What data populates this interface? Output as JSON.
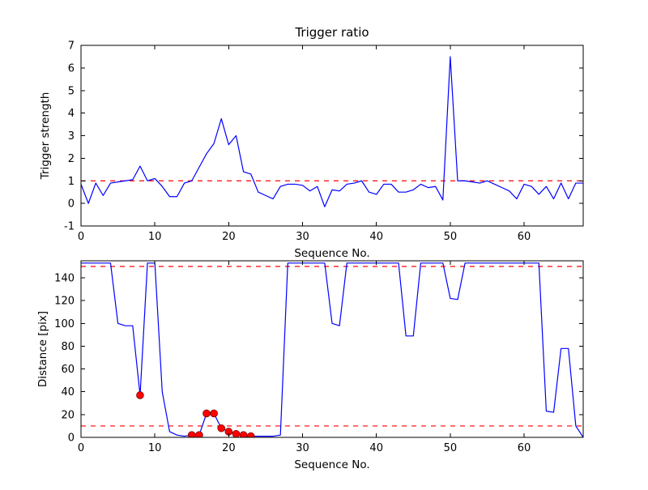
{
  "figure": {
    "background": "#ffffff",
    "line_color": "#0000ff",
    "threshold_color": "#ff0000",
    "marker_color": "#ff0000",
    "spine_color": "#000000"
  },
  "chart_data": [
    {
      "type": "line",
      "name": "trigger-ratio-chart",
      "title": "Trigger ratio",
      "xlabel": "Sequence No.",
      "ylabel": "Trigger strength",
      "xlim": [
        0,
        68
      ],
      "ylim": [
        -1,
        7
      ],
      "xticks": [
        0,
        10,
        20,
        30,
        40,
        50,
        60
      ],
      "yticks": [
        -1,
        0,
        1,
        2,
        3,
        4,
        5,
        6,
        7
      ],
      "grid": false,
      "legend": null,
      "threshold_lines": [
        {
          "y": 1,
          "style": "dashed",
          "color": "#ff0000"
        }
      ],
      "series": [
        {
          "name": "trigger-strength",
          "color": "#0000ff",
          "x": [
            0,
            1,
            2,
            3,
            4,
            5,
            6,
            7,
            8,
            9,
            10,
            11,
            12,
            13,
            14,
            15,
            16,
            17,
            18,
            19,
            20,
            21,
            22,
            23,
            24,
            25,
            26,
            27,
            28,
            29,
            30,
            31,
            32,
            33,
            34,
            35,
            36,
            37,
            38,
            39,
            40,
            41,
            42,
            43,
            44,
            45,
            46,
            47,
            48,
            49,
            50,
            51,
            52,
            53,
            54,
            55,
            56,
            57,
            58,
            59,
            60,
            61,
            62,
            63,
            64,
            65,
            66,
            67,
            68
          ],
          "y": [
            0.85,
            0.0,
            0.9,
            0.35,
            0.9,
            0.95,
            1.0,
            1.05,
            1.65,
            1.0,
            1.1,
            0.75,
            0.3,
            0.3,
            0.9,
            1.0,
            1.6,
            2.2,
            2.65,
            3.75,
            2.6,
            3.0,
            1.4,
            1.3,
            0.5,
            0.35,
            0.2,
            0.75,
            0.85,
            0.85,
            0.8,
            0.55,
            0.75,
            -0.15,
            0.6,
            0.55,
            0.85,
            0.9,
            1.0,
            0.5,
            0.4,
            0.85,
            0.85,
            0.5,
            0.5,
            0.6,
            0.85,
            0.7,
            0.75,
            0.15,
            6.5,
            1.0,
            1.0,
            0.95,
            0.9,
            1.0,
            0.85,
            0.7,
            0.55,
            0.2,
            0.85,
            0.75,
            0.4,
            0.75,
            0.2,
            0.9,
            0.2,
            0.9,
            0.9
          ]
        }
      ]
    },
    {
      "type": "line",
      "name": "distance-chart",
      "title": "",
      "xlabel": "Sequence No.",
      "ylabel": "Distance [pix]",
      "xlim": [
        0,
        68
      ],
      "ylim": [
        0,
        155
      ],
      "xticks": [
        0,
        10,
        20,
        30,
        40,
        50,
        60
      ],
      "yticks": [
        0,
        20,
        40,
        60,
        80,
        100,
        120,
        140
      ],
      "grid": false,
      "legend": null,
      "threshold_lines": [
        {
          "y": 150,
          "style": "dashed",
          "color": "#ff0000"
        },
        {
          "y": 10,
          "style": "dashed",
          "color": "#ff0000"
        }
      ],
      "series": [
        {
          "name": "distance",
          "color": "#0000ff",
          "x": [
            0,
            1,
            2,
            3,
            4,
            5,
            6,
            7,
            8,
            9,
            10,
            11,
            12,
            13,
            14,
            15,
            16,
            17,
            18,
            19,
            20,
            21,
            22,
            23,
            24,
            25,
            26,
            27,
            28,
            29,
            30,
            31,
            32,
            33,
            34,
            35,
            36,
            37,
            38,
            39,
            40,
            41,
            42,
            43,
            44,
            45,
            46,
            47,
            48,
            49,
            50,
            51,
            52,
            53,
            54,
            55,
            56,
            57,
            58,
            59,
            60,
            61,
            62,
            63,
            64,
            65,
            66,
            67,
            68
          ],
          "y": [
            153,
            153,
            153,
            153,
            153,
            100,
            98,
            98,
            37,
            153,
            153,
            40,
            5,
            2,
            1,
            2,
            2,
            21,
            21,
            8,
            5,
            3,
            2,
            1,
            1,
            1,
            1,
            2,
            153,
            153,
            153,
            153,
            153,
            153,
            100,
            98,
            153,
            153,
            153,
            153,
            153,
            153,
            153,
            153,
            89,
            89,
            153,
            153,
            153,
            153,
            122,
            121,
            153,
            153,
            153,
            153,
            153,
            153,
            153,
            153,
            153,
            153,
            153,
            23,
            22,
            78,
            78,
            10,
            0
          ]
        }
      ],
      "markers": {
        "name": "trigger-points",
        "shape": "circle",
        "color": "#ff0000",
        "points": [
          [
            8,
            37
          ],
          [
            15,
            2
          ],
          [
            16,
            2
          ],
          [
            17,
            21
          ],
          [
            18,
            21
          ],
          [
            19,
            8
          ],
          [
            20,
            5
          ],
          [
            21,
            3
          ],
          [
            22,
            2
          ],
          [
            23,
            1
          ]
        ]
      }
    }
  ]
}
